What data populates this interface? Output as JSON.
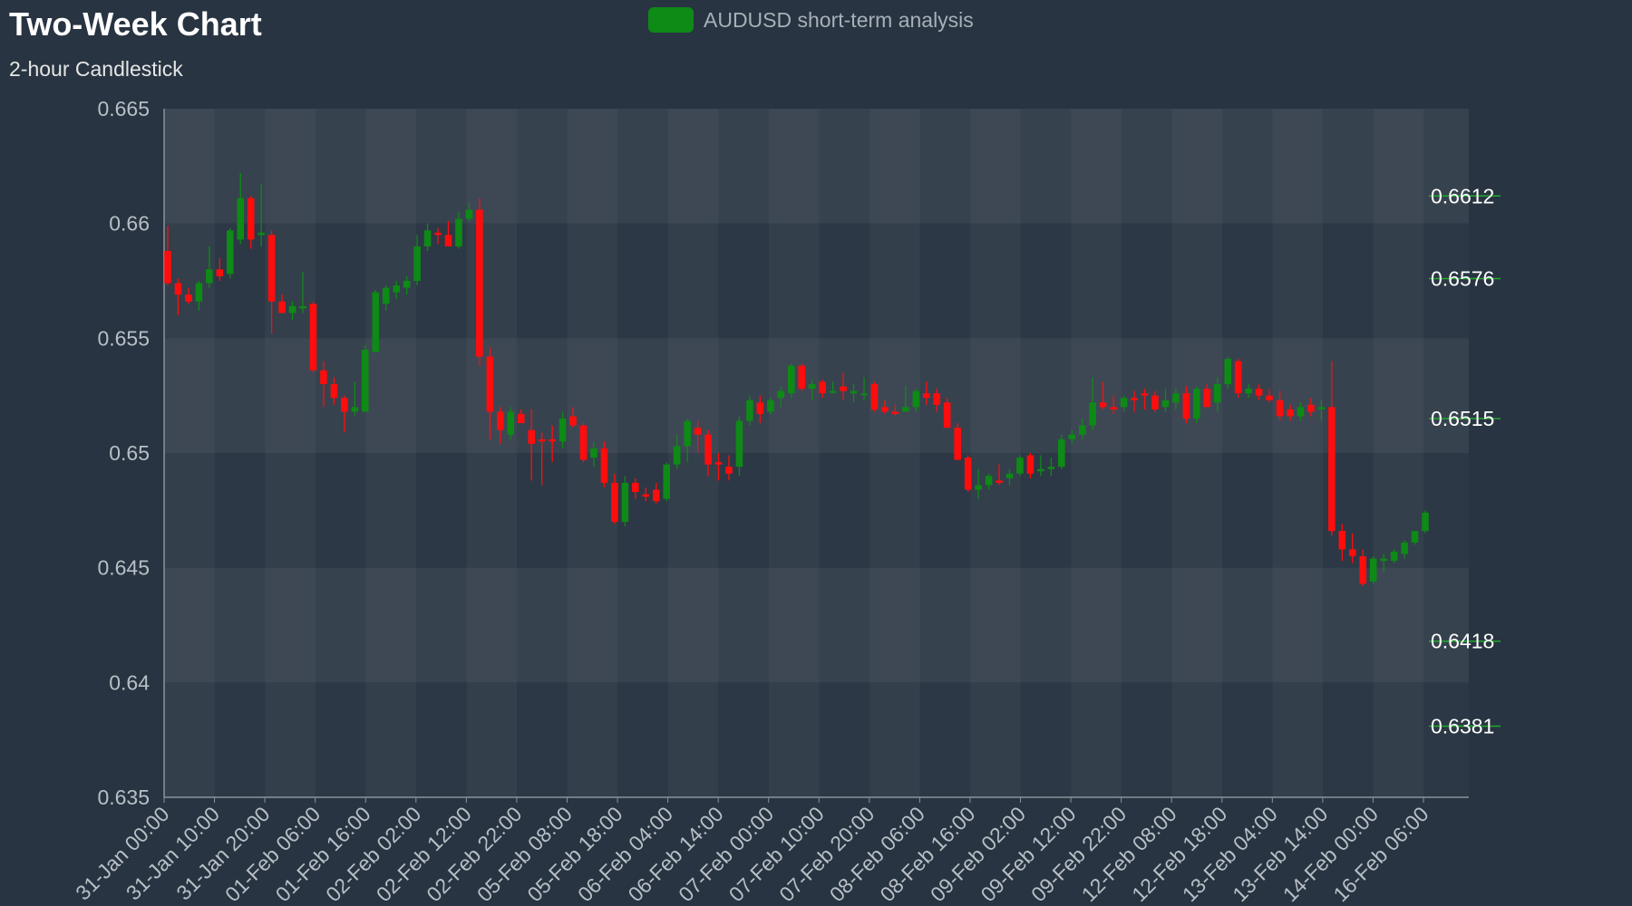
{
  "chart_data": {
    "type": "candlestick",
    "title": "Two-Week Chart",
    "subtitle": "2-hour Candlestick",
    "legend": {
      "label": "AUDUSD short-term analysis",
      "color": "#0e8a16",
      "position": "top-center"
    },
    "ylim": [
      0.635,
      0.665
    ],
    "y_ticks": [
      "0.665",
      "0.66",
      "0.655",
      "0.65",
      "0.645",
      "0.64",
      "0.635"
    ],
    "x_tick_labels": [
      "31-Jan 00:00",
      "31-Jan 10:00",
      "31-Jan 20:00",
      "01-Feb 06:00",
      "01-Feb 16:00",
      "02-Feb 02:00",
      "02-Feb 12:00",
      "02-Feb 22:00",
      "05-Feb 08:00",
      "05-Feb 18:00",
      "06-Feb 04:00",
      "06-Feb 14:00",
      "07-Feb 00:00",
      "07-Feb 10:00",
      "07-Feb 20:00",
      "08-Feb 06:00",
      "08-Feb 16:00",
      "09-Feb 02:00",
      "09-Feb 12:00",
      "09-Feb 22:00",
      "12-Feb 08:00",
      "12-Feb 18:00",
      "13-Feb 04:00",
      "13-Feb 14:00",
      "14-Feb 00:00",
      "16-Feb 06:00"
    ],
    "grid": true,
    "colors": {
      "up": "#0e8a16",
      "down": "#ff0d0d",
      "level_line": "#1faa2a",
      "level_text": "#ffffff"
    },
    "levels": [
      0.6612,
      0.6576,
      0.6515,
      0.6418,
      0.6381
    ],
    "level_labels": [
      "0.6612",
      "0.6576",
      "0.6515",
      "0.6418",
      "0.6381"
    ],
    "candles": [
      [
        0.6588,
        0.6599,
        0.6573,
        0.6574
      ],
      [
        0.6574,
        0.6576,
        0.656,
        0.6569
      ],
      [
        0.6569,
        0.6572,
        0.6565,
        0.6566
      ],
      [
        0.6566,
        0.6575,
        0.6562,
        0.6574
      ],
      [
        0.6574,
        0.659,
        0.6572,
        0.658
      ],
      [
        0.658,
        0.6585,
        0.6575,
        0.6577
      ],
      [
        0.6578,
        0.6598,
        0.6576,
        0.6597
      ],
      [
        0.6593,
        0.6622,
        0.6591,
        0.6611
      ],
      [
        0.6611,
        0.6612,
        0.6589,
        0.6593
      ],
      [
        0.6595,
        0.6617,
        0.659,
        0.6596
      ],
      [
        0.6595,
        0.6597,
        0.6552,
        0.6566
      ],
      [
        0.6566,
        0.6569,
        0.6562,
        0.6561
      ],
      [
        0.6561,
        0.6566,
        0.6558,
        0.6564
      ],
      [
        0.6563,
        0.6579,
        0.6561,
        0.6564
      ],
      [
        0.6565,
        0.6566,
        0.6535,
        0.6536
      ],
      [
        0.6536,
        0.654,
        0.652,
        0.653
      ],
      [
        0.653,
        0.6533,
        0.6521,
        0.6524
      ],
      [
        0.6524,
        0.6525,
        0.6509,
        0.6518
      ],
      [
        0.6518,
        0.6531,
        0.6516,
        0.652
      ],
      [
        0.6518,
        0.6547,
        0.6518,
        0.6545
      ],
      [
        0.6544,
        0.6571,
        0.6544,
        0.657
      ],
      [
        0.6565,
        0.6573,
        0.6562,
        0.6572
      ],
      [
        0.657,
        0.6575,
        0.6567,
        0.6573
      ],
      [
        0.6572,
        0.6577,
        0.6569,
        0.6575
      ],
      [
        0.6575,
        0.6595,
        0.6573,
        0.659
      ],
      [
        0.659,
        0.66,
        0.6588,
        0.6597
      ],
      [
        0.6596,
        0.6598,
        0.6591,
        0.6595
      ],
      [
        0.6595,
        0.6601,
        0.659,
        0.659
      ],
      [
        0.659,
        0.6605,
        0.6589,
        0.6602
      ],
      [
        0.6602,
        0.6609,
        0.6601,
        0.6606
      ],
      [
        0.6606,
        0.6611,
        0.6538,
        0.6542
      ],
      [
        0.6542,
        0.6546,
        0.6506,
        0.6518
      ],
      [
        0.6518,
        0.652,
        0.6504,
        0.651
      ],
      [
        0.6508,
        0.652,
        0.6506,
        0.6518
      ],
      [
        0.6517,
        0.6519,
        0.6513,
        0.6513
      ],
      [
        0.651,
        0.6519,
        0.6488,
        0.6504
      ],
      [
        0.6506,
        0.6509,
        0.6486,
        0.6505
      ],
      [
        0.6506,
        0.6512,
        0.6496,
        0.6505
      ],
      [
        0.6505,
        0.6518,
        0.6502,
        0.6515
      ],
      [
        0.6516,
        0.652,
        0.6511,
        0.6512
      ],
      [
        0.6512,
        0.6513,
        0.6496,
        0.6497
      ],
      [
        0.6498,
        0.6505,
        0.6494,
        0.6502
      ],
      [
        0.6502,
        0.6505,
        0.6485,
        0.6487
      ],
      [
        0.6487,
        0.6491,
        0.6469,
        0.647
      ],
      [
        0.647,
        0.649,
        0.6468,
        0.6487
      ],
      [
        0.6487,
        0.6489,
        0.648,
        0.6483
      ],
      [
        0.6482,
        0.6485,
        0.6479,
        0.6481
      ],
      [
        0.6484,
        0.6487,
        0.6478,
        0.6479
      ],
      [
        0.648,
        0.6496,
        0.6479,
        0.6495
      ],
      [
        0.6495,
        0.6508,
        0.6493,
        0.6503
      ],
      [
        0.6503,
        0.6515,
        0.6496,
        0.6514
      ],
      [
        0.6511,
        0.6514,
        0.65,
        0.6508
      ],
      [
        0.6508,
        0.651,
        0.649,
        0.6495
      ],
      [
        0.6496,
        0.65,
        0.6488,
        0.6495
      ],
      [
        0.6494,
        0.6499,
        0.6488,
        0.6491
      ],
      [
        0.6494,
        0.6516,
        0.649,
        0.6514
      ],
      [
        0.6514,
        0.6525,
        0.6512,
        0.6523
      ],
      [
        0.6522,
        0.6525,
        0.6513,
        0.6517
      ],
      [
        0.6518,
        0.6524,
        0.6517,
        0.6523
      ],
      [
        0.6524,
        0.6529,
        0.652,
        0.6527
      ],
      [
        0.6526,
        0.6539,
        0.6524,
        0.6538
      ],
      [
        0.6538,
        0.6539,
        0.6527,
        0.6528
      ],
      [
        0.6528,
        0.6532,
        0.6523,
        0.653
      ],
      [
        0.6531,
        0.6532,
        0.6524,
        0.6526
      ],
      [
        0.6527,
        0.6531,
        0.6526,
        0.6527
      ],
      [
        0.6529,
        0.6535,
        0.6523,
        0.6527
      ],
      [
        0.6526,
        0.653,
        0.6522,
        0.6527
      ],
      [
        0.6526,
        0.6533,
        0.6523,
        0.6526
      ],
      [
        0.653,
        0.6531,
        0.6518,
        0.6519
      ],
      [
        0.652,
        0.6523,
        0.6517,
        0.6518
      ],
      [
        0.6518,
        0.6521,
        0.6516,
        0.6517
      ],
      [
        0.6518,
        0.6529,
        0.6518,
        0.652
      ],
      [
        0.652,
        0.6528,
        0.6518,
        0.6527
      ],
      [
        0.6526,
        0.6531,
        0.6521,
        0.6524
      ],
      [
        0.6526,
        0.6528,
        0.6518,
        0.6521
      ],
      [
        0.6522,
        0.6524,
        0.6511,
        0.6511
      ],
      [
        0.6511,
        0.6513,
        0.6497,
        0.6497
      ],
      [
        0.6498,
        0.6499,
        0.6483,
        0.6484
      ],
      [
        0.6484,
        0.6493,
        0.648,
        0.6486
      ],
      [
        0.6486,
        0.6491,
        0.6484,
        0.649
      ],
      [
        0.6488,
        0.6495,
        0.6486,
        0.6487
      ],
      [
        0.6489,
        0.6493,
        0.6486,
        0.6491
      ],
      [
        0.6491,
        0.6499,
        0.649,
        0.6498
      ],
      [
        0.6499,
        0.65,
        0.6489,
        0.6491
      ],
      [
        0.6492,
        0.6499,
        0.649,
        0.6493
      ],
      [
        0.6493,
        0.6498,
        0.649,
        0.6494
      ],
      [
        0.6494,
        0.6508,
        0.6493,
        0.6506
      ],
      [
        0.6506,
        0.651,
        0.6504,
        0.6508
      ],
      [
        0.6508,
        0.6515,
        0.6506,
        0.6512
      ],
      [
        0.6512,
        0.6533,
        0.651,
        0.6522
      ],
      [
        0.6522,
        0.6531,
        0.6519,
        0.652
      ],
      [
        0.652,
        0.6525,
        0.6517,
        0.6519
      ],
      [
        0.652,
        0.6525,
        0.6518,
        0.6524
      ],
      [
        0.6524,
        0.6527,
        0.6518,
        0.6523
      ],
      [
        0.6526,
        0.6528,
        0.6519,
        0.6525
      ],
      [
        0.6525,
        0.6527,
        0.6518,
        0.6519
      ],
      [
        0.652,
        0.6528,
        0.6518,
        0.6523
      ],
      [
        0.6522,
        0.6528,
        0.6519,
        0.6526
      ],
      [
        0.6526,
        0.6529,
        0.6513,
        0.6515
      ],
      [
        0.6515,
        0.6529,
        0.6513,
        0.6528
      ],
      [
        0.6528,
        0.653,
        0.652,
        0.652
      ],
      [
        0.6522,
        0.6533,
        0.6518,
        0.653
      ],
      [
        0.653,
        0.6542,
        0.6528,
        0.6541
      ],
      [
        0.654,
        0.6541,
        0.6524,
        0.6526
      ],
      [
        0.6526,
        0.653,
        0.6524,
        0.6528
      ],
      [
        0.6528,
        0.653,
        0.6523,
        0.6525
      ],
      [
        0.6525,
        0.6528,
        0.6522,
        0.6523
      ],
      [
        0.6523,
        0.6527,
        0.6514,
        0.6516
      ],
      [
        0.6519,
        0.6521,
        0.6514,
        0.6516
      ],
      [
        0.6516,
        0.6522,
        0.6514,
        0.652
      ],
      [
        0.6521,
        0.6524,
        0.6516,
        0.6518
      ],
      [
        0.6519,
        0.6523,
        0.6514,
        0.652
      ],
      [
        0.652,
        0.654,
        0.6464,
        0.6466
      ],
      [
        0.6466,
        0.6469,
        0.6453,
        0.6458
      ],
      [
        0.6458,
        0.6465,
        0.6452,
        0.6455
      ],
      [
        0.6455,
        0.6458,
        0.6442,
        0.6443
      ],
      [
        0.6444,
        0.6455,
        0.6443,
        0.6454
      ],
      [
        0.6453,
        0.6456,
        0.6448,
        0.6454
      ],
      [
        0.6453,
        0.6458,
        0.6452,
        0.6457
      ],
      [
        0.6456,
        0.6462,
        0.6454,
        0.6461
      ],
      [
        0.6461,
        0.6466,
        0.646,
        0.6466
      ],
      [
        0.6466,
        0.6475,
        0.6465,
        0.6474
      ]
    ]
  }
}
